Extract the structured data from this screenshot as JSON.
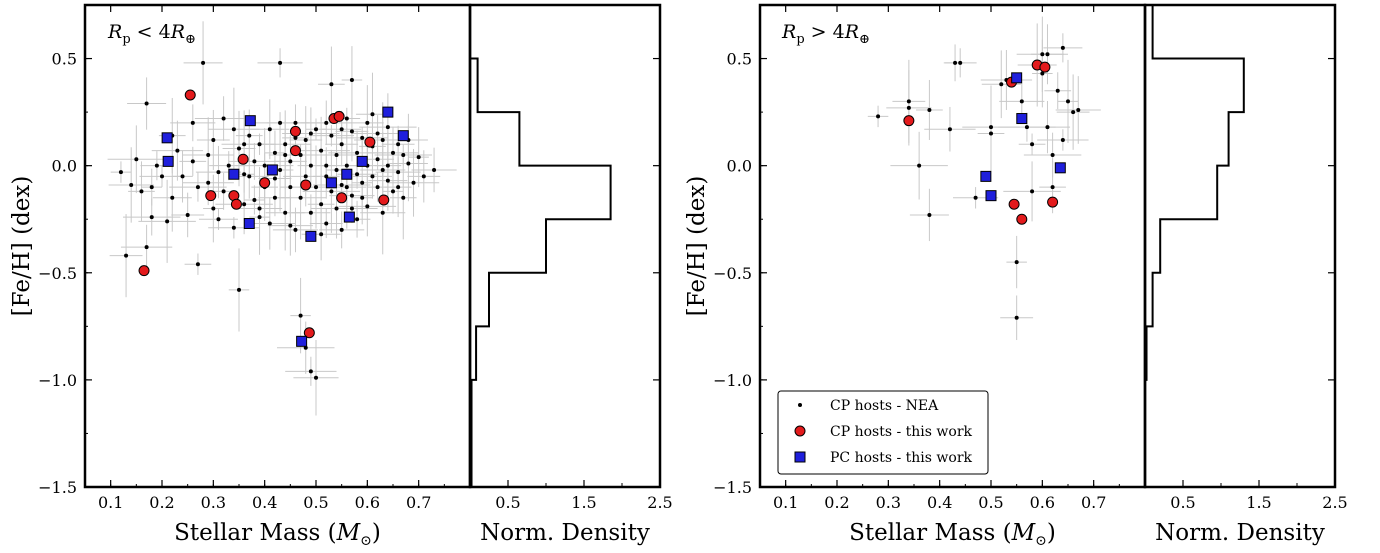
{
  "colors": {
    "nea": "#000000",
    "cp_work": "#e31a1c",
    "pc_work": "#1f1fdc",
    "errorbar": "#c8c8c8"
  },
  "legend": {
    "nea": "CP hosts - NEA",
    "cp": "CP hosts - this work",
    "pc": "PC hosts - this work"
  },
  "chart_data": [
    {
      "type": "scatter",
      "panel_label": "R_p < 4 R_⊕",
      "xlabel": "Stellar Mass (M_⊙)",
      "ylabel": "[Fe/H] (dex)",
      "xlim": [
        0.05,
        0.8
      ],
      "ylim": [
        -1.5,
        0.75
      ],
      "xticks": [
        "0.1",
        "0.2",
        "0.3",
        "0.4",
        "0.5",
        "0.6",
        "0.7"
      ],
      "yticks": [
        "−1.5",
        "−1.0",
        "−0.5",
        "0.0",
        "0.5"
      ],
      "series": [
        {
          "key": "nea",
          "name": "CP hosts - NEA",
          "marker": "dot",
          "points": [
            [
              0.12,
              -0.03
            ],
            [
              0.13,
              -0.42
            ],
            [
              0.14,
              -0.09
            ],
            [
              0.15,
              0.03
            ],
            [
              0.16,
              -0.12
            ],
            [
              0.17,
              0.29
            ],
            [
              0.17,
              -0.38
            ],
            [
              0.18,
              -0.1
            ],
            [
              0.19,
              0.0
            ],
            [
              0.2,
              -0.05
            ],
            [
              0.21,
              -0.26
            ],
            [
              0.22,
              0.14
            ],
            [
              0.22,
              -0.15
            ],
            [
              0.23,
              0.07
            ],
            [
              0.24,
              -0.05
            ],
            [
              0.25,
              -0.23
            ],
            [
              0.26,
              0.2
            ],
            [
              0.27,
              -0.1
            ],
            [
              0.27,
              -0.46
            ],
            [
              0.28,
              0.48
            ],
            [
              0.29,
              0.05
            ],
            [
              0.3,
              -0.2
            ],
            [
              0.3,
              0.12
            ],
            [
              0.31,
              -0.03
            ],
            [
              0.32,
              0.22
            ],
            [
              0.32,
              -0.12
            ],
            [
              0.33,
              0.0
            ],
            [
              0.34,
              -0.29
            ],
            [
              0.35,
              -0.58
            ],
            [
              0.35,
              0.08
            ],
            [
              0.36,
              0.1
            ],
            [
              0.36,
              -0.18
            ],
            [
              0.37,
              0.14
            ],
            [
              0.37,
              -0.05
            ],
            [
              0.38,
              0.02
            ],
            [
              0.38,
              -0.16
            ],
            [
              0.39,
              0.1
            ],
            [
              0.39,
              -0.2
            ],
            [
              0.4,
              0.0
            ],
            [
              0.4,
              -0.1
            ],
            [
              0.41,
              0.17
            ],
            [
              0.41,
              -0.27
            ],
            [
              0.42,
              0.06
            ],
            [
              0.42,
              -0.15
            ],
            [
              0.43,
              0.48
            ],
            [
              0.43,
              0.2
            ],
            [
              0.43,
              -0.02
            ],
            [
              0.44,
              -0.22
            ],
            [
              0.44,
              0.1
            ],
            [
              0.45,
              -0.1
            ],
            [
              0.45,
              0.02
            ],
            [
              0.46,
              -0.3
            ],
            [
              0.46,
              0.2
            ],
            [
              0.46,
              0.13
            ],
            [
              0.47,
              0.05
            ],
            [
              0.47,
              -0.15
            ],
            [
              0.47,
              -0.7
            ],
            [
              0.48,
              0.12
            ],
            [
              0.48,
              -0.05
            ],
            [
              0.48,
              -0.85
            ],
            [
              0.49,
              0.0
            ],
            [
              0.49,
              -0.22
            ],
            [
              0.49,
              -0.96
            ],
            [
              0.5,
              0.17
            ],
            [
              0.5,
              -0.1
            ],
            [
              0.5,
              -0.99
            ],
            [
              0.51,
              0.07
            ],
            [
              0.51,
              -0.18
            ],
            [
              0.51,
              -0.32
            ],
            [
              0.52,
              0.2
            ],
            [
              0.52,
              0.0
            ],
            [
              0.52,
              -0.27
            ],
            [
              0.53,
              0.14
            ],
            [
              0.53,
              -0.12
            ],
            [
              0.53,
              0.38
            ],
            [
              0.54,
              0.05
            ],
            [
              0.54,
              -0.2
            ],
            [
              0.54,
              -0.02
            ],
            [
              0.55,
              0.1
            ],
            [
              0.55,
              -0.3
            ],
            [
              0.55,
              -0.09
            ],
            [
              0.56,
              0.22
            ],
            [
              0.56,
              -0.1
            ],
            [
              0.56,
              0.0
            ],
            [
              0.57,
              0.4
            ],
            [
              0.57,
              0.16
            ],
            [
              0.57,
              -0.14
            ],
            [
              0.58,
              0.06
            ],
            [
              0.58,
              -0.25
            ],
            [
              0.58,
              -0.04
            ],
            [
              0.59,
              0.13
            ],
            [
              0.59,
              -0.08
            ],
            [
              0.6,
              0.2
            ],
            [
              0.6,
              0.0
            ],
            [
              0.6,
              -0.19
            ],
            [
              0.61,
              0.09
            ],
            [
              0.61,
              -0.05
            ],
            [
              0.62,
              0.15
            ],
            [
              0.62,
              -0.1
            ],
            [
              0.62,
              0.03
            ],
            [
              0.63,
              -0.22
            ],
            [
              0.63,
              0.12
            ],
            [
              0.64,
              0.0
            ],
            [
              0.64,
              -0.07
            ],
            [
              0.65,
              0.06
            ],
            [
              0.65,
              -0.12
            ],
            [
              0.66,
              0.1
            ],
            [
              0.66,
              -0.03
            ],
            [
              0.67,
              0.05
            ],
            [
              0.67,
              -0.15
            ],
            [
              0.68,
              0.01
            ],
            [
              0.69,
              -0.08
            ],
            [
              0.7,
              0.04
            ],
            [
              0.71,
              -0.05
            ],
            [
              0.73,
              -0.02
            ],
            [
              0.18,
              -0.24
            ],
            [
              0.26,
              0.02
            ],
            [
              0.31,
              -0.25
            ],
            [
              0.34,
              0.17
            ],
            [
              0.39,
              -0.24
            ],
            [
              0.44,
              0.05
            ],
            [
              0.45,
              -0.28
            ],
            [
              0.49,
              0.15
            ],
            [
              0.52,
              -0.05
            ],
            [
              0.55,
              0.17
            ],
            [
              0.57,
              -0.2
            ],
            [
              0.59,
              -0.15
            ],
            [
              0.61,
              0.24
            ],
            [
              0.63,
              -0.02
            ],
            [
              0.64,
              0.18
            ],
            [
              0.66,
              -0.1
            ],
            [
              0.68,
              0.12
            ],
            [
              0.29,
              -0.08
            ],
            [
              0.36,
              -0.04
            ],
            [
              0.42,
              -0.06
            ]
          ]
        },
        {
          "key": "cp",
          "name": "CP hosts - this work",
          "marker": "circle",
          "points": [
            [
              0.165,
              -0.49
            ],
            [
              0.255,
              0.33
            ],
            [
              0.295,
              -0.14
            ],
            [
              0.34,
              -0.14
            ],
            [
              0.345,
              -0.18
            ],
            [
              0.358,
              0.03
            ],
            [
              0.4,
              -0.08
            ],
            [
              0.46,
              0.16
            ],
            [
              0.46,
              0.07
            ],
            [
              0.48,
              -0.09
            ],
            [
              0.487,
              -0.78
            ],
            [
              0.535,
              0.22
            ],
            [
              0.545,
              0.23
            ],
            [
              0.55,
              -0.15
            ],
            [
              0.605,
              0.11
            ],
            [
              0.632,
              -0.16
            ]
          ]
        },
        {
          "key": "pc",
          "name": "PC hosts - this work",
          "marker": "square",
          "points": [
            [
              0.21,
              0.13
            ],
            [
              0.212,
              0.02
            ],
            [
              0.34,
              -0.04
            ],
            [
              0.37,
              -0.27
            ],
            [
              0.372,
              0.21
            ],
            [
              0.415,
              -0.02
            ],
            [
              0.472,
              -0.82
            ],
            [
              0.49,
              -0.33
            ],
            [
              0.53,
              -0.08
            ],
            [
              0.56,
              -0.04
            ],
            [
              0.565,
              -0.24
            ],
            [
              0.59,
              0.02
            ],
            [
              0.64,
              0.25
            ],
            [
              0.67,
              0.14
            ]
          ]
        }
      ],
      "histogram": {
        "type": "histogram",
        "xlabel": "Norm. Density",
        "xlim": [
          0,
          2.5
        ],
        "xticks": [
          "0.5",
          "1.5",
          "2.5"
        ],
        "bins": [
          [
            0.75,
            0.5,
            0.0
          ],
          [
            0.5,
            0.25,
            0.1
          ],
          [
            0.25,
            0.0,
            0.65
          ],
          [
            0.0,
            -0.25,
            1.85
          ],
          [
            -0.25,
            -0.5,
            1.0
          ],
          [
            -0.5,
            -0.75,
            0.25
          ],
          [
            -0.75,
            -1.0,
            0.08
          ],
          [
            -1.0,
            -1.5,
            0.02
          ]
        ]
      }
    },
    {
      "type": "scatter",
      "panel_label": "R_p > 4 R_⊕",
      "xlabel": "Stellar Mass (M_⊙)",
      "ylabel": "[Fe/H] (dex)",
      "xlim": [
        0.05,
        0.8
      ],
      "ylim": [
        -1.5,
        0.75
      ],
      "xticks": [
        "0.1",
        "0.2",
        "0.3",
        "0.4",
        "0.5",
        "0.6",
        "0.7"
      ],
      "yticks": [
        "−1.5",
        "−1.0",
        "−0.5",
        "0.0",
        "0.5"
      ],
      "series": [
        {
          "key": "nea",
          "name": "CP hosts - NEA",
          "marker": "dot",
          "points": [
            [
              0.28,
              0.23
            ],
            [
              0.34,
              0.3
            ],
            [
              0.34,
              0.27
            ],
            [
              0.36,
              -0.0
            ],
            [
              0.38,
              0.26
            ],
            [
              0.38,
              -0.23
            ],
            [
              0.42,
              0.17
            ],
            [
              0.43,
              0.48
            ],
            [
              0.44,
              0.48
            ],
            [
              0.47,
              -0.15
            ],
            [
              0.5,
              0.18
            ],
            [
              0.5,
              0.15
            ],
            [
              0.52,
              0.38
            ],
            [
              0.53,
              0.4
            ],
            [
              0.55,
              -0.45
            ],
            [
              0.55,
              -0.71
            ],
            [
              0.56,
              0.3
            ],
            [
              0.57,
              0.18
            ],
            [
              0.58,
              0.1
            ],
            [
              0.59,
              0.47
            ],
            [
              0.6,
              0.52
            ],
            [
              0.6,
              0.43
            ],
            [
              0.61,
              0.52
            ],
            [
              0.61,
              0.18
            ],
            [
              0.62,
              0.05
            ],
            [
              0.63,
              0.35
            ],
            [
              0.64,
              0.55
            ],
            [
              0.64,
              0.12
            ],
            [
              0.65,
              0.3
            ],
            [
              0.66,
              0.25
            ],
            [
              0.67,
              0.26
            ],
            [
              0.58,
              -0.12
            ],
            [
              0.62,
              -0.1
            ]
          ]
        },
        {
          "key": "cp",
          "name": "CP hosts - this work",
          "marker": "circle",
          "points": [
            [
              0.34,
              0.21
            ],
            [
              0.54,
              0.39
            ],
            [
              0.545,
              -0.18
            ],
            [
              0.56,
              -0.25
            ],
            [
              0.59,
              0.47
            ],
            [
              0.605,
              0.46
            ],
            [
              0.62,
              -0.17
            ]
          ]
        },
        {
          "key": "pc",
          "name": "PC hosts - this work",
          "marker": "square",
          "points": [
            [
              0.49,
              -0.05
            ],
            [
              0.5,
              -0.14
            ],
            [
              0.55,
              0.41
            ],
            [
              0.56,
              0.22
            ],
            [
              0.635,
              -0.01
            ]
          ]
        }
      ],
      "histogram": {
        "type": "histogram",
        "xlabel": "Norm. Density",
        "xlim": [
          0,
          2.5
        ],
        "xticks": [
          "0.5",
          "1.5",
          "2.5"
        ],
        "bins": [
          [
            0.75,
            0.5,
            0.1
          ],
          [
            0.5,
            0.25,
            1.3
          ],
          [
            0.25,
            0.0,
            1.1
          ],
          [
            0.0,
            -0.25,
            0.95
          ],
          [
            -0.25,
            -0.5,
            0.2
          ],
          [
            -0.5,
            -0.75,
            0.1
          ],
          [
            -0.75,
            -1.0,
            0.02
          ],
          [
            -1.0,
            -1.5,
            0.0
          ]
        ]
      },
      "legend_loc": "lower-left"
    }
  ]
}
